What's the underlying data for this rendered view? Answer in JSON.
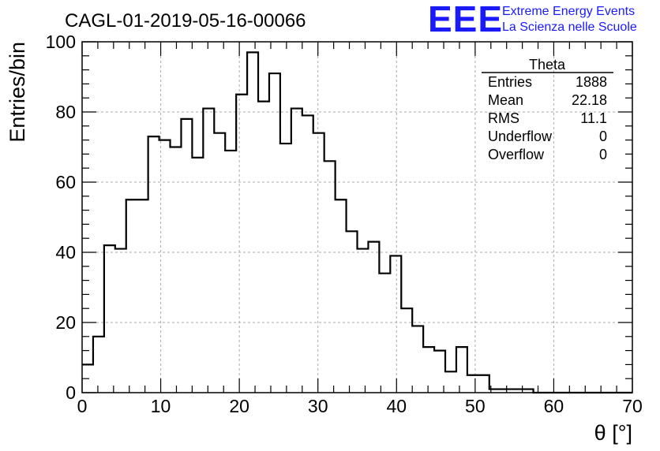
{
  "chart_data": {
    "type": "bar",
    "title": "CAGL-01-2019-05-16-00066",
    "xlabel": "θ [°]",
    "ylabel": "Entries/bin",
    "xlim": [
      0,
      70
    ],
    "ylim": [
      0,
      100
    ],
    "xticks": [
      0,
      10,
      20,
      30,
      40,
      50,
      60,
      70
    ],
    "yticks": [
      0,
      20,
      40,
      60,
      80,
      100
    ],
    "grid": true,
    "bin_width": 1.4,
    "values": [
      8,
      16,
      42,
      41,
      55,
      55,
      73,
      72,
      70,
      78,
      67,
      81,
      74,
      69,
      85,
      97,
      83,
      91,
      71,
      81,
      79,
      74,
      66,
      55,
      46,
      41,
      43,
      34,
      39,
      24,
      19,
      13,
      12,
      6,
      13,
      5,
      5,
      1,
      1,
      1,
      1,
      0,
      0,
      0,
      0,
      0,
      0,
      0,
      0,
      0
    ],
    "stats": {
      "title": "Theta",
      "rows": [
        {
          "label": "Entries",
          "value": "1888"
        },
        {
          "label": "Mean",
          "value": "22.18"
        },
        {
          "label": "RMS",
          "value": "11.1"
        },
        {
          "label": "Underflow",
          "value": "0"
        },
        {
          "label": "Overflow",
          "value": "0"
        }
      ]
    }
  },
  "logo": {
    "mark": "EEE",
    "line1": "Extreme Energy Events",
    "line2": "La Scienza nelle Scuole",
    "color": "#1a1aff"
  }
}
